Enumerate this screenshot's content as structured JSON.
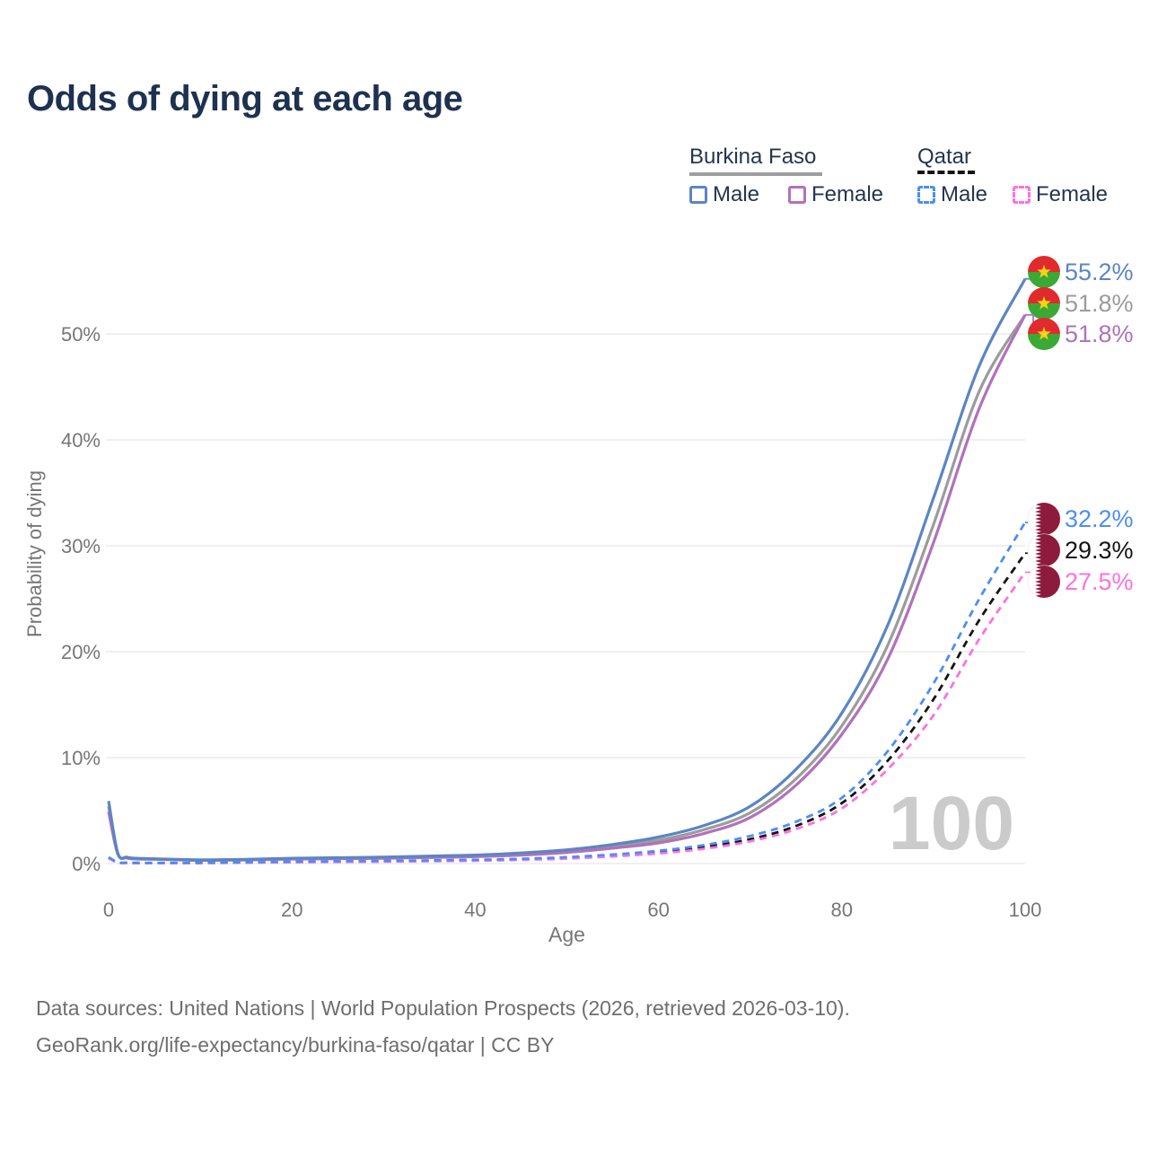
{
  "title": "Odds of dying at each age",
  "legend": {
    "groups": [
      {
        "name": "Burkina Faso",
        "line_style": "solid",
        "underline_color": "#9e9e9e",
        "items": [
          {
            "label": "Male",
            "color": "#5b85c4"
          },
          {
            "label": "Female",
            "color": "#b171bb"
          }
        ]
      },
      {
        "name": "Qatar",
        "line_style": "dashed",
        "underline_color": "#141414",
        "items": [
          {
            "label": "Male",
            "color": "#4b8ef5"
          },
          {
            "label": "Female",
            "color": "#ff70dd"
          }
        ]
      }
    ]
  },
  "watermark": "100",
  "chart_data": {
    "type": "line",
    "title": "Odds of dying at each age",
    "xlabel": "Age",
    "ylabel": "Probability of dying",
    "xlim": [
      0,
      100
    ],
    "ylim": [
      0,
      56
    ],
    "x_ticks": [
      0,
      20,
      40,
      60,
      80,
      100
    ],
    "y_ticks": [
      0,
      10,
      20,
      30,
      40,
      50
    ],
    "y_tick_suffix": "%",
    "grid": "horizontal",
    "gridline_color": "#e8e8e8",
    "legend_position": "top-right",
    "x": [
      0,
      1,
      2,
      3,
      5,
      10,
      15,
      20,
      25,
      30,
      35,
      40,
      45,
      50,
      55,
      60,
      65,
      70,
      75,
      80,
      85,
      90,
      95,
      100
    ],
    "series": [
      {
        "name": "Burkina Faso Male",
        "country": "burkina-faso",
        "sex": "male",
        "color": "#5b85c4",
        "dashed": false,
        "end_label": "55.2%",
        "values": [
          5.9,
          1.0,
          0.6,
          0.5,
          0.45,
          0.35,
          0.4,
          0.5,
          0.55,
          0.6,
          0.7,
          0.8,
          1.0,
          1.3,
          1.8,
          2.5,
          3.6,
          5.4,
          8.9,
          14.2,
          22.5,
          34.5,
          47.0,
          55.2
        ]
      },
      {
        "name": "Burkina Faso Both sexes",
        "country": "burkina-faso",
        "sex": "both",
        "color": "#9c9c9c",
        "dashed": false,
        "end_label": "51.8%",
        "values": [
          5.4,
          0.95,
          0.56,
          0.46,
          0.42,
          0.33,
          0.37,
          0.46,
          0.5,
          0.55,
          0.63,
          0.72,
          0.9,
          1.15,
          1.6,
          2.2,
          3.2,
          4.8,
          8.0,
          13.0,
          20.6,
          32.0,
          44.6,
          51.8
        ]
      },
      {
        "name": "Burkina Faso Female",
        "country": "burkina-faso",
        "sex": "female",
        "color": "#b171bb",
        "dashed": false,
        "end_label": "51.8%",
        "values": [
          4.9,
          0.9,
          0.52,
          0.43,
          0.4,
          0.3,
          0.34,
          0.42,
          0.46,
          0.5,
          0.57,
          0.65,
          0.8,
          1.05,
          1.45,
          1.95,
          2.85,
          4.35,
          7.4,
          12.2,
          19.3,
          30.3,
          43.0,
          51.8
        ]
      },
      {
        "name": "Qatar Male",
        "country": "qatar",
        "sex": "male",
        "color": "#4b8ef5",
        "dashed": true,
        "end_label": "32.2%",
        "values": [
          0.6,
          0.12,
          0.08,
          0.07,
          0.06,
          0.07,
          0.12,
          0.18,
          0.22,
          0.26,
          0.3,
          0.36,
          0.45,
          0.6,
          0.85,
          1.2,
          1.75,
          2.6,
          3.95,
          6.2,
          10.6,
          17.0,
          25.0,
          32.2
        ]
      },
      {
        "name": "Qatar Both sexes",
        "country": "qatar",
        "sex": "both",
        "color": "#141414",
        "dashed": true,
        "end_label": "29.3%",
        "values": [
          0.55,
          0.1,
          0.07,
          0.06,
          0.05,
          0.06,
          0.1,
          0.15,
          0.18,
          0.22,
          0.26,
          0.31,
          0.4,
          0.53,
          0.75,
          1.05,
          1.55,
          2.3,
          3.55,
          5.7,
          9.7,
          15.5,
          23.0,
          29.3
        ]
      },
      {
        "name": "Qatar Female",
        "country": "qatar",
        "sex": "female",
        "color": "#ff70dd",
        "dashed": true,
        "end_label": "27.5%",
        "values": [
          0.5,
          0.09,
          0.06,
          0.05,
          0.05,
          0.05,
          0.08,
          0.12,
          0.15,
          0.18,
          0.22,
          0.27,
          0.35,
          0.47,
          0.67,
          0.95,
          1.4,
          2.1,
          3.25,
          5.2,
          8.9,
          14.0,
          21.2,
          27.5
        ]
      }
    ]
  },
  "flag_colors": {
    "burkina_faso_red": "#e12a2d",
    "burkina_faso_green": "#3ba935",
    "burkina_faso_star": "#fcd116",
    "qatar_maroon": "#8d1b3d",
    "qatar_white": "#ffffff"
  },
  "footer": {
    "line1": "Data sources: United Nations | World Population Prospects (2026, retrieved 2026-03-10).",
    "line2": "GeoRank.org/life-expectancy/burkina-faso/qatar | CC BY"
  }
}
